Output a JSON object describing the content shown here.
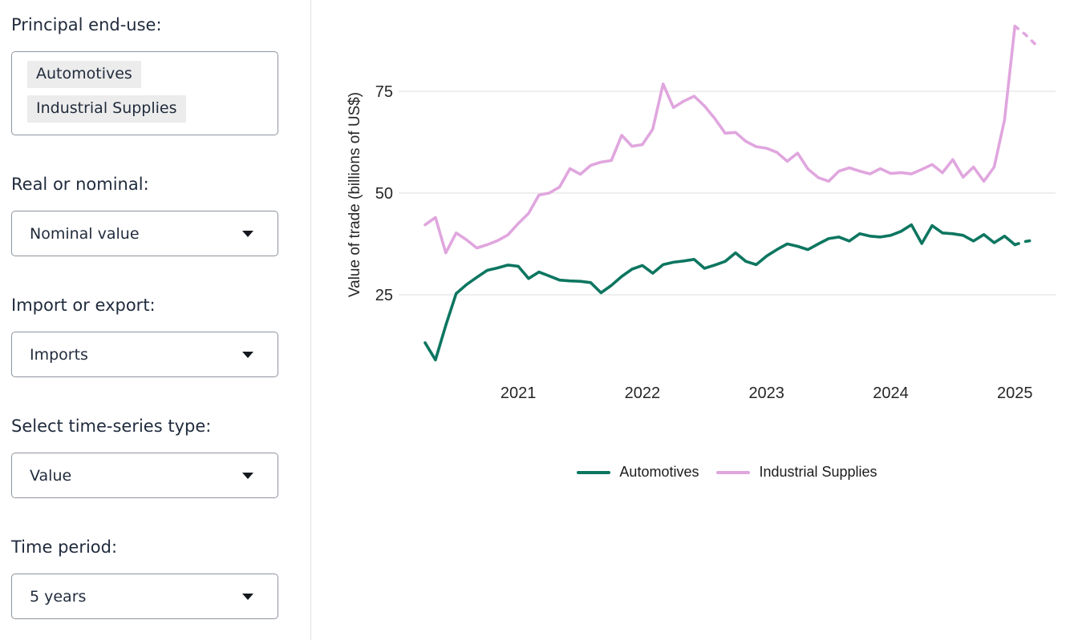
{
  "sidebar": {
    "fields": [
      {
        "label": "Principal end-use:",
        "type": "multiselect",
        "values": [
          "Automotives",
          "Industrial Supplies"
        ]
      },
      {
        "label": "Real or nominal:",
        "type": "select",
        "value": "Nominal value"
      },
      {
        "label": "Import or export:",
        "type": "select",
        "value": "Imports"
      },
      {
        "label": "Select time-series type:",
        "type": "select",
        "value": "Value"
      },
      {
        "label": "Time period:",
        "type": "select",
        "value": "5 years"
      }
    ]
  },
  "chart_data": {
    "type": "line",
    "title": "",
    "xlabel": "",
    "ylabel": "Value of trade (billions of US$)",
    "y_ticks": [
      25,
      50,
      75
    ],
    "ylim": [
      5,
      95
    ],
    "x_tick_labels": [
      "2021",
      "2022",
      "2023",
      "2024",
      "2025"
    ],
    "x_start": "2020-04",
    "x_frequency": "monthly",
    "grid": "horizontal",
    "legend_position": "bottom",
    "gridline_color": "#e8e8e8",
    "series": [
      {
        "name": "Automotives",
        "color": "#0d7660",
        "dashed_tail_segments": 2,
        "values": [
          13.2,
          9,
          17.5,
          25.3,
          27.5,
          29.3,
          31,
          31.6,
          32.3,
          32,
          29,
          30.6,
          29.6,
          28.6,
          28.4,
          28.3,
          28,
          25.5,
          27.3,
          29.5,
          31.3,
          32.2,
          30.3,
          32.4,
          33,
          33.3,
          33.7,
          31.5,
          32.3,
          33.2,
          35.3,
          33.2,
          32.4,
          34.5,
          36.1,
          37.5,
          36.9,
          36.1,
          37.5,
          38.8,
          39.2,
          38.2,
          40,
          39.4,
          39.2,
          39.6,
          40.6,
          42.2,
          37.6,
          42,
          40.2,
          40,
          39.6,
          38.2,
          39.8,
          37.8,
          39.4,
          37.3,
          38.1,
          38.5
        ]
      },
      {
        "name": "Industrial Supplies",
        "color": "#e0a6de",
        "dashed_tail_segments": 2,
        "values": [
          42.2,
          44,
          35.3,
          40.2,
          38.5,
          36.5,
          37.3,
          38.3,
          39.7,
          42.5,
          45,
          49.5,
          50,
          51.5,
          56,
          54.6,
          56.8,
          57.6,
          58,
          64.2,
          61.5,
          61.9,
          65.7,
          76.8,
          71,
          72.6,
          73.8,
          71.4,
          68.3,
          64.7,
          64.9,
          62.7,
          61.4,
          61,
          60,
          57.8,
          59.8,
          55.9,
          53.8,
          52.9,
          55.4,
          56.2,
          55.4,
          54.7,
          56,
          54.8,
          55,
          54.7,
          55.8,
          57,
          55,
          58.2,
          53.9,
          56.4,
          52.9,
          56.4,
          68,
          91,
          89,
          86.5
        ]
      }
    ]
  }
}
